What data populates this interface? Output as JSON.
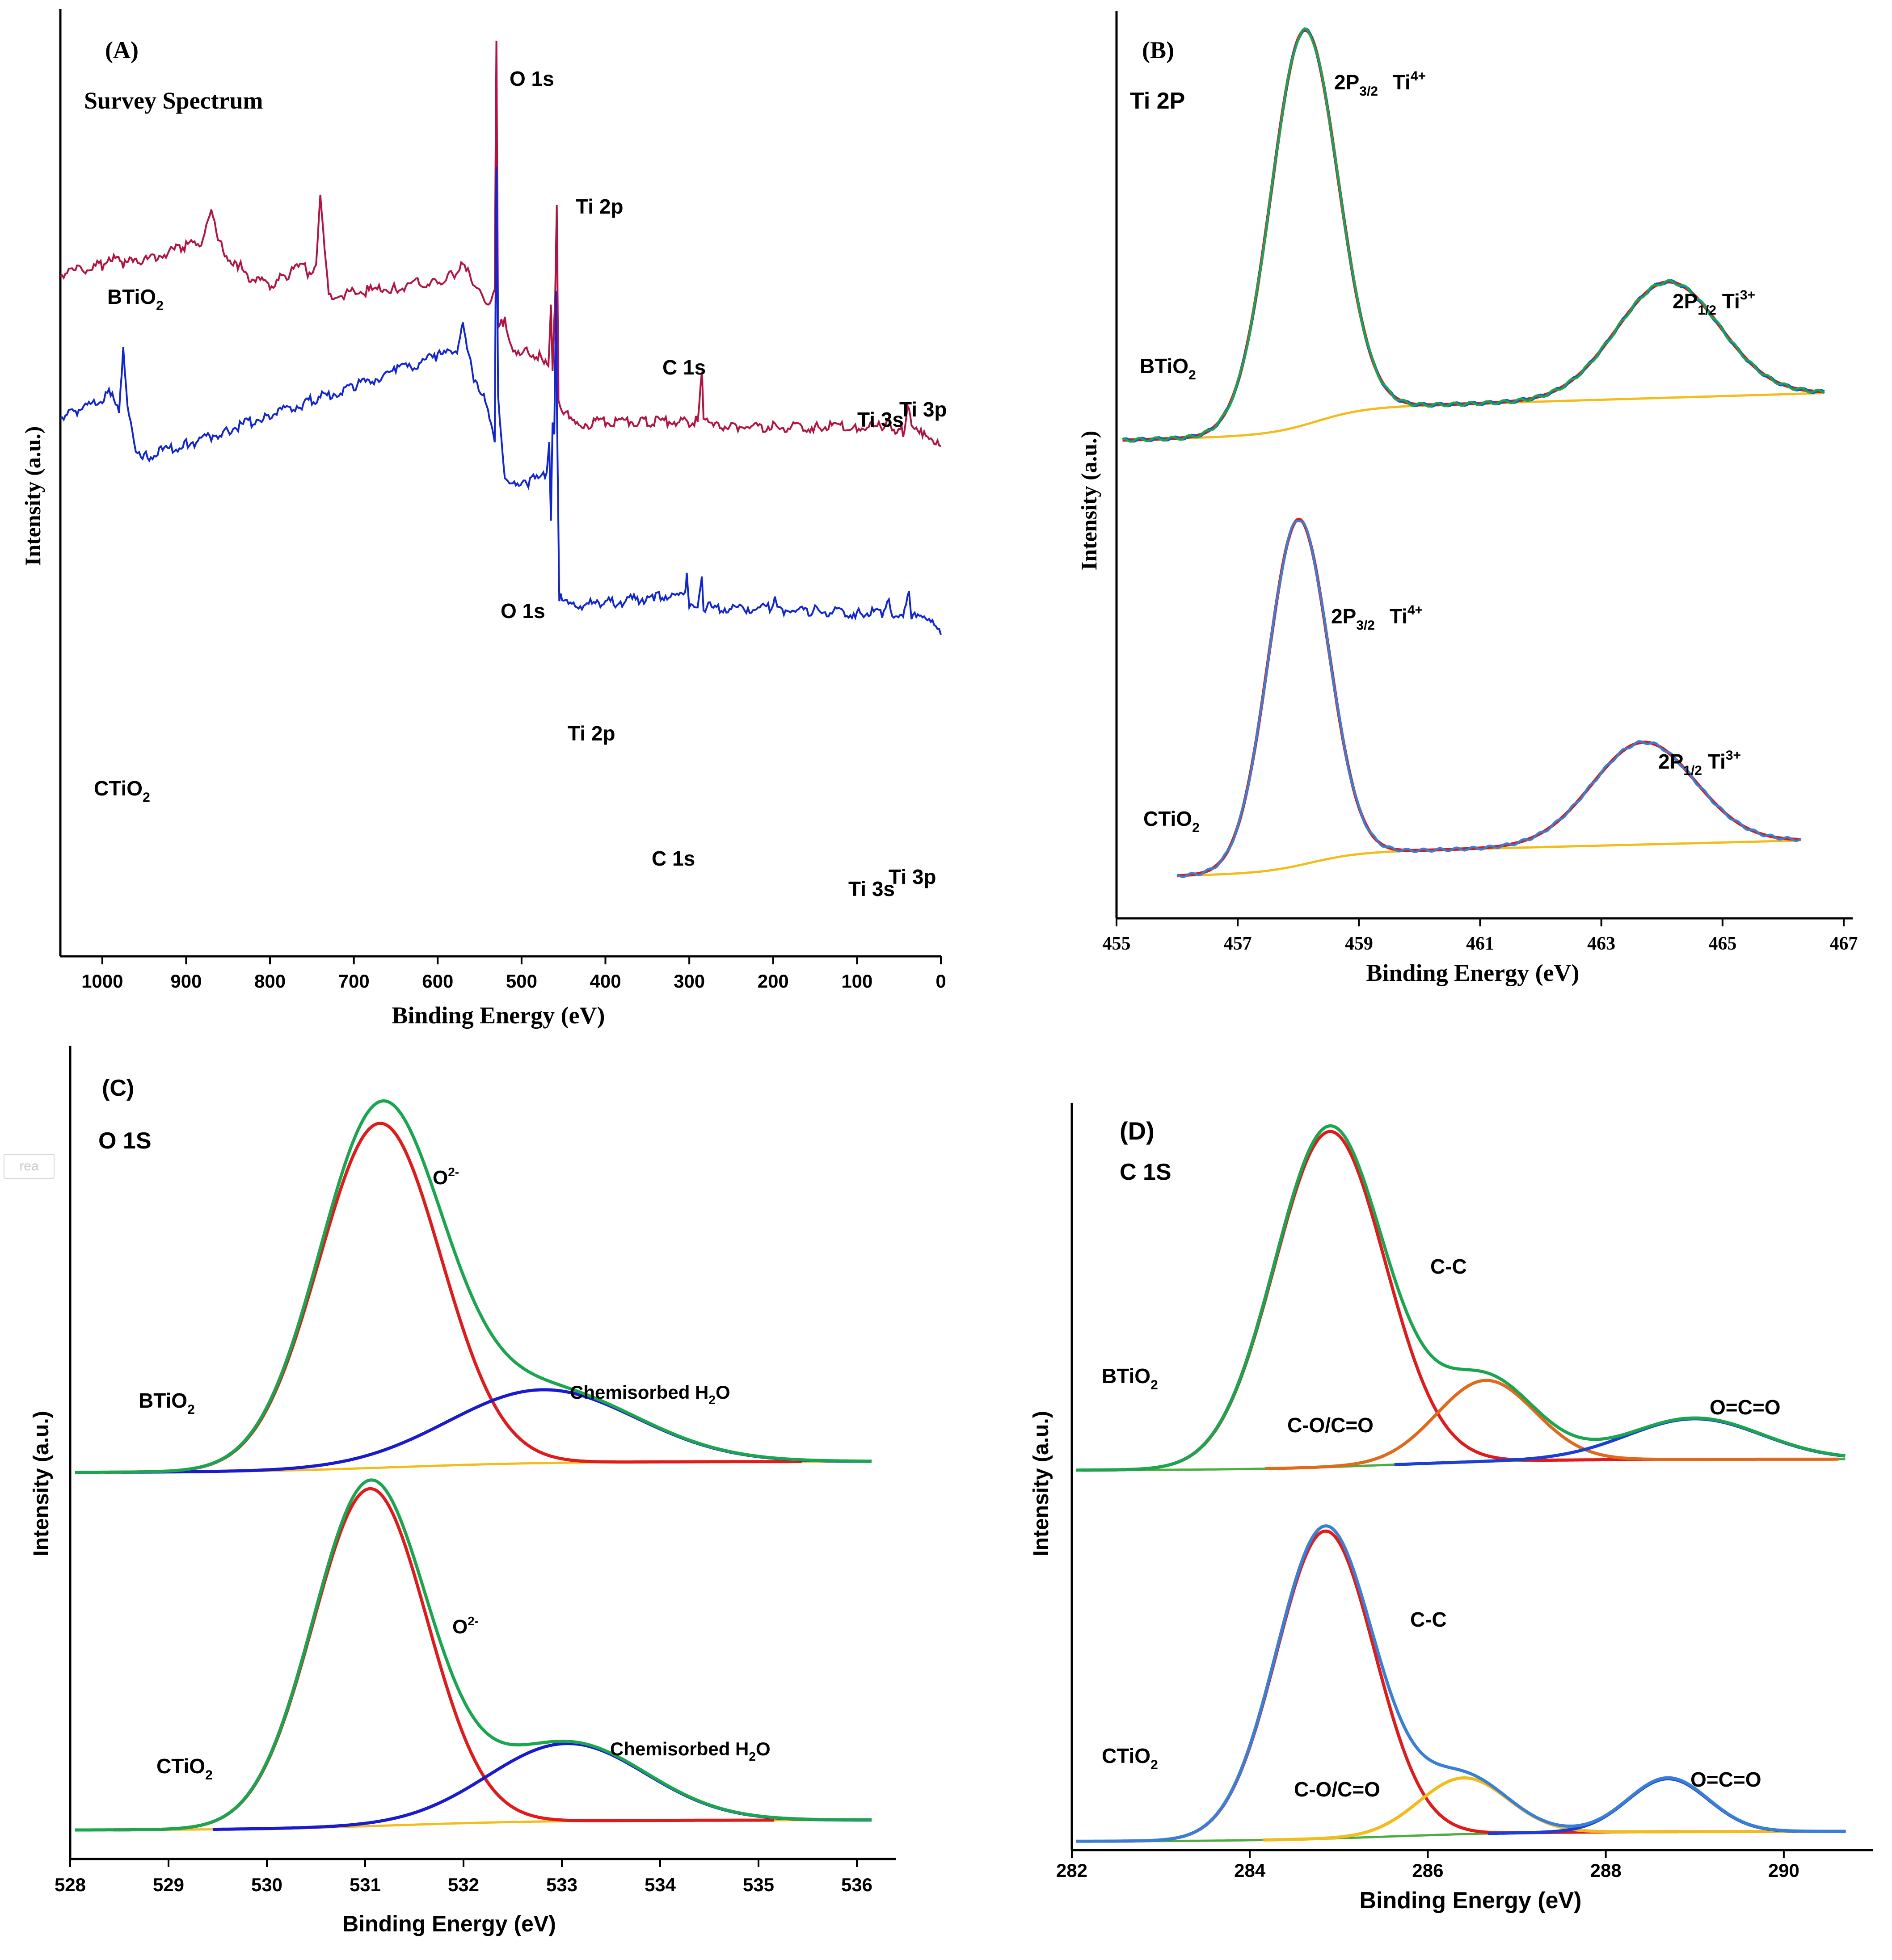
{
  "figure": {
    "area_tag": "rea"
  },
  "chart_data": [
    {
      "id": "A",
      "type": "line",
      "panel_label": "(A)",
      "subtitle": "Survey Spectrum",
      "xlabel": "Binding Energy (eV)",
      "ylabel": "Intensity (a.u.)",
      "xlim": [
        1050,
        0
      ],
      "reversed_x": true,
      "xticks": [
        "1000",
        "900",
        "800",
        "700",
        "600",
        "500",
        "400",
        "300",
        "200",
        "100",
        "0"
      ],
      "series": [
        {
          "name": "BTiO2",
          "color": "#b5123f",
          "offset": 0.46,
          "scale": 0.52,
          "points": [
            [
              1050,
              0.03
            ],
            [
              1000,
              0.06
            ],
            [
              990,
              0.09
            ],
            [
              975,
              0.07
            ],
            [
              950,
              0.08
            ],
            [
              900,
              0.14
            ],
            [
              880,
              0.16
            ],
            [
              870,
              0.28
            ],
            [
              860,
              0.15
            ],
            [
              840,
              0.05
            ],
            [
              835,
              0.08
            ],
            [
              825,
              0.01
            ],
            [
              800,
              -0.02
            ],
            [
              780,
              0.02
            ],
            [
              760,
              0.07
            ],
            [
              755,
              0.0
            ],
            [
              745,
              0.05
            ],
            [
              740,
              0.33
            ],
            [
              735,
              0.12
            ],
            [
              730,
              -0.07
            ],
            [
              700,
              -0.05
            ],
            [
              650,
              -0.03
            ],
            [
              600,
              0.0
            ],
            [
              580,
              0.02
            ],
            [
              570,
              0.08
            ],
            [
              560,
              0.0
            ],
            [
              550,
              -0.06
            ],
            [
              540,
              -0.12
            ],
            [
              532,
              -0.05
            ],
            [
              530,
              0.98
            ],
            [
              528,
              -0.2
            ],
            [
              520,
              -0.16
            ],
            [
              510,
              -0.28
            ],
            [
              490,
              -0.3
            ],
            [
              475,
              -0.32
            ],
            [
              468,
              -0.33
            ],
            [
              465,
              -0.1
            ],
            [
              463,
              -0.35
            ],
            [
              460,
              -0.1
            ],
            [
              458,
              0.3
            ],
            [
              456,
              -0.5
            ],
            [
              450,
              -0.56
            ],
            [
              445,
              -0.55
            ],
            [
              430,
              -0.59
            ],
            [
              400,
              -0.58
            ],
            [
              350,
              -0.58
            ],
            [
              300,
              -0.58
            ],
            [
              290,
              -0.57
            ],
            [
              285,
              -0.37
            ],
            [
              283,
              -0.58
            ],
            [
              275,
              -0.6
            ],
            [
              250,
              -0.6
            ],
            [
              200,
              -0.6
            ],
            [
              150,
              -0.6
            ],
            [
              100,
              -0.6
            ],
            [
              70,
              -0.6
            ],
            [
              62,
              -0.56
            ],
            [
              58,
              -0.61
            ],
            [
              45,
              -0.62
            ],
            [
              38,
              -0.51
            ],
            [
              35,
              -0.61
            ],
            [
              20,
              -0.64
            ],
            [
              10,
              -0.67
            ],
            [
              0,
              -0.68
            ]
          ],
          "label": "BTiO",
          "label_sub": "2"
        },
        {
          "name": "CTiO2",
          "color": "#1024d8",
          "offset": 0.11,
          "scale": 0.52,
          "points": [
            [
              1050,
              0.12
            ],
            [
              1030,
              0.14
            ],
            [
              1000,
              0.18
            ],
            [
              990,
              0.22
            ],
            [
              980,
              0.12
            ],
            [
              975,
              0.38
            ],
            [
              970,
              0.15
            ],
            [
              960,
              -0.04
            ],
            [
              950,
              -0.05
            ],
            [
              900,
              0.0
            ],
            [
              850,
              0.06
            ],
            [
              800,
              0.12
            ],
            [
              750,
              0.18
            ],
            [
              700,
              0.24
            ],
            [
              650,
              0.3
            ],
            [
              600,
              0.36
            ],
            [
              575,
              0.4
            ],
            [
              570,
              0.48
            ],
            [
              565,
              0.38
            ],
            [
              555,
              0.25
            ],
            [
              545,
              0.2
            ],
            [
              540,
              0.15
            ],
            [
              535,
              0.08
            ],
            [
              532,
              0.02
            ],
            [
              530,
              1.15
            ],
            [
              528,
              0.2
            ],
            [
              520,
              -0.16
            ],
            [
              505,
              -0.18
            ],
            [
              490,
              -0.15
            ],
            [
              480,
              -0.14
            ],
            [
              470,
              -0.12
            ],
            [
              467,
              0.0
            ],
            [
              465,
              -0.3
            ],
            [
              463,
              0.1
            ],
            [
              461,
              0.05
            ],
            [
              459,
              0.65
            ],
            [
              458,
              0.2
            ],
            [
              455,
              -0.62
            ],
            [
              450,
              -0.66
            ],
            [
              400,
              -0.65
            ],
            [
              350,
              -0.63
            ],
            [
              340,
              -0.62
            ],
            [
              305,
              -0.62
            ],
            [
              303,
              -0.52
            ],
            [
              300,
              -0.65
            ],
            [
              290,
              -0.65
            ],
            [
              285,
              -0.52
            ],
            [
              283,
              -0.67
            ],
            [
              250,
              -0.67
            ],
            [
              200,
              -0.67
            ],
            [
              198,
              -0.64
            ],
            [
              195,
              -0.68
            ],
            [
              150,
              -0.68
            ],
            [
              100,
              -0.69
            ],
            [
              70,
              -0.69
            ],
            [
              62,
              -0.62
            ],
            [
              58,
              -0.7
            ],
            [
              45,
              -0.7
            ],
            [
              38,
              -0.58
            ],
            [
              35,
              -0.7
            ],
            [
              20,
              -0.72
            ],
            [
              10,
              -0.74
            ],
            [
              0,
              -0.78
            ]
          ],
          "label": "CTiO",
          "label_sub": "2"
        }
      ],
      "annotations": [
        {
          "text": "O 1s",
          "series": "BTiO2"
        },
        {
          "text": "Ti 2p",
          "series": "BTiO2"
        },
        {
          "text": "C 1s",
          "series": "BTiO2"
        },
        {
          "text": "Ti 3s",
          "series": "BTiO2"
        },
        {
          "text": "Ti 3p",
          "series": "BTiO2"
        },
        {
          "text": "O 1s",
          "series": "CTiO2"
        },
        {
          "text": "Ti 2p",
          "series": "CTiO2"
        },
        {
          "text": "C 1s",
          "series": "CTiO2"
        },
        {
          "text": "Ti 3s",
          "series": "CTiO2"
        },
        {
          "text": "Ti 3p",
          "series": "CTiO2"
        }
      ]
    },
    {
      "id": "B",
      "type": "line",
      "panel_label": "(B)",
      "subtitle": "Ti 2P",
      "xlabel": "Binding Energy (eV)",
      "ylabel": "Intensity (a.u.)",
      "xlim": [
        455,
        467
      ],
      "reversed_x": false,
      "xticks": [
        "455",
        "457",
        "459",
        "461",
        "463",
        "465",
        "467"
      ],
      "samples": [
        {
          "name": "BTiO2",
          "label": "BTiO",
          "label_sub": "2",
          "peaks": [
            {
              "center": 458.1,
              "height": 0.92,
              "width": 0.55
            },
            {
              "center": 464.1,
              "height": 0.27,
              "width": 0.85
            }
          ],
          "baseline": {
            "start": 455.1,
            "end": 466.7,
            "low": 0.0,
            "high": 0.11,
            "step_center": 458.3
          },
          "envelope_colors": [
            "#d81b1b",
            "#1a4fd8",
            "#1aa64e"
          ],
          "background_color": "#f2bd1a",
          "annotations": [
            {
              "text": "2P",
              "sub": "3/2",
              "sup_label": " Ti",
              "sup": "4+"
            },
            {
              "text": "2P",
              "sub": "1/2",
              "sup_label": " Ti",
              "sup": "3+"
            }
          ]
        },
        {
          "name": "CTiO2",
          "label": "CTiO",
          "label_sub": "2",
          "peaks": [
            {
              "center": 458.0,
              "height": 0.88,
              "width": 0.5
            },
            {
              "center": 463.7,
              "height": 0.26,
              "width": 0.85
            }
          ],
          "baseline": {
            "start": 456.0,
            "end": 466.3,
            "low": 0.0,
            "high": 0.09,
            "step_center": 458.2
          },
          "envelope_colors": [
            "#d81b1b",
            "#3a7fd6"
          ],
          "background_color": "#f2bd1a",
          "annotations": [
            {
              "text": "2P",
              "sub": "3/2",
              "sup_label": " Ti",
              "sup": "4+"
            },
            {
              "text": "2P",
              "sub": "1/2",
              "sup_label": " Ti",
              "sup": "3+"
            }
          ]
        }
      ]
    },
    {
      "id": "C",
      "type": "line",
      "panel_label": "(C)",
      "subtitle": "O 1S",
      "xlabel": "Binding Energy (eV)",
      "ylabel": "Intensity (a.u.)",
      "xlim": [
        528,
        536.4
      ],
      "reversed_x": false,
      "xticks": [
        "528",
        "529",
        "530",
        "531",
        "532",
        "533",
        "534",
        "535",
        "536"
      ],
      "samples": [
        {
          "name": "BTiO2",
          "label": "BTiO",
          "label_sub": "2",
          "components": [
            {
              "name": "O2-",
              "center": 531.15,
              "height": 0.94,
              "width": 0.62,
              "color": "#e31a1a"
            },
            {
              "name": "Chemisorbed H2O",
              "center": 532.8,
              "height": 0.2,
              "width": 0.95,
              "color": "#1a1ad0"
            }
          ],
          "envelope_color": "#1aa64e",
          "background_color": "#f2bd1a",
          "annotations": [
            {
              "text": "O",
              "sup": "2-"
            },
            {
              "text": "Chemisorbed H",
              "sub": "2",
              "after": "O"
            }
          ]
        },
        {
          "name": "CTiO2",
          "label": "CTiO",
          "label_sub": "2",
          "components": [
            {
              "name": "O2-",
              "center": 531.05,
              "height": 1.0,
              "width": 0.58,
              "color": "#e31a1a"
            },
            {
              "name": "Chemisorbed H2O",
              "center": 533.05,
              "height": 0.23,
              "width": 0.8,
              "color": "#1a1ad0"
            }
          ],
          "envelope_color": "#1aa64e",
          "background_color": "#f2bd1a",
          "annotations": [
            {
              "text": "O",
              "sup": "2-"
            },
            {
              "text": "Chemisorbed H",
              "sub": "2",
              "after": "O"
            }
          ]
        }
      ]
    },
    {
      "id": "D",
      "type": "line",
      "panel_label": "(D)",
      "subtitle": "C 1S",
      "xlabel": "Binding Energy (eV)",
      "ylabel": "Intensity (a.u.)",
      "xlim": [
        282,
        291
      ],
      "reversed_x": false,
      "xticks": [
        "282",
        "284",
        "286",
        "288",
        "290"
      ],
      "samples": [
        {
          "name": "BTiO2",
          "label": "BTiO",
          "label_sub": "2",
          "components": [
            {
              "name": "C-C",
              "center": 284.9,
              "height": 0.91,
              "width": 0.62,
              "color": "#e31a1a"
            },
            {
              "name": "C-O/C=O",
              "center": 286.65,
              "height": 0.22,
              "width": 0.55,
              "color": "#e0691a"
            },
            {
              "name": "O=C=O",
              "center": 289.0,
              "height": 0.11,
              "width": 0.75,
              "color": "#1a3fd6"
            }
          ],
          "envelope_color": "#1aa64e",
          "background_color": "#4cae3e",
          "annotations": [
            {
              "text": "C-C"
            },
            {
              "text": "C-O/C=O"
            },
            {
              "text": "O=C=O"
            }
          ]
        },
        {
          "name": "CTiO2",
          "label": "CTiO",
          "label_sub": "2",
          "components": [
            {
              "name": "C-C",
              "center": 284.85,
              "height": 0.93,
              "width": 0.55,
              "color": "#e31a1a"
            },
            {
              "name": "C-O/C=O",
              "center": 286.4,
              "height": 0.17,
              "width": 0.5,
              "color": "#f2bd1a"
            },
            {
              "name": "O=C=O",
              "center": 288.7,
              "height": 0.16,
              "width": 0.45,
              "color": "#1a3fd6"
            }
          ],
          "envelope_color": "#3a7fd6",
          "background_color": "#4cae3e",
          "annotations": [
            {
              "text": "C-C"
            },
            {
              "text": "C-O/C=O"
            },
            {
              "text": "O=C=O"
            }
          ]
        }
      ]
    }
  ]
}
